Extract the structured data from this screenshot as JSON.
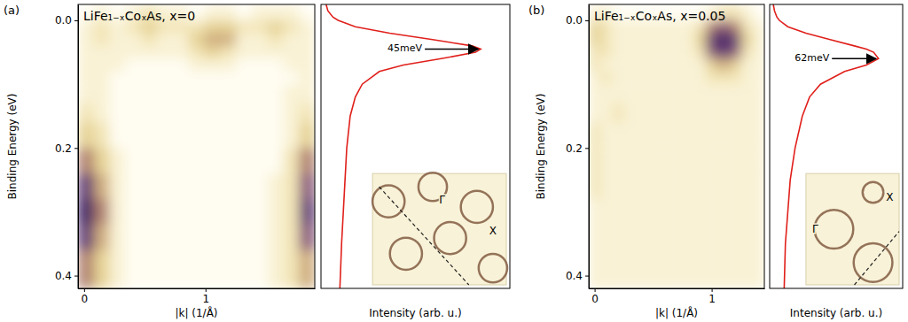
{
  "chart_data": [
    {
      "type": "heatmap",
      "label": "(a)",
      "title": "LiFe₁₋ₓCoₓAs, x=0",
      "x_label": "|k| (1/Å)",
      "y_label": "Binding Energy (eV)",
      "xlim": [
        -0.05,
        1.9
      ],
      "ylim": [
        0.42,
        -0.025
      ],
      "xticks": [
        0,
        1
      ],
      "yticks": [
        {
          "value": 0,
          "label": "0.0"
        },
        0.2,
        0.4
      ],
      "xbins": [
        -0.05,
        0.08,
        0.21,
        0.34,
        0.47,
        0.6,
        0.73,
        0.86,
        0.99,
        1.12,
        1.25,
        1.38,
        1.51,
        1.64,
        1.77,
        1.9
      ],
      "ybins": [
        -0.025,
        0,
        0.02,
        0.04,
        0.06,
        0.08,
        0.1,
        0.13,
        0.16,
        0.2,
        0.24,
        0.28,
        0.32,
        0.36,
        0.42
      ],
      "values": [
        [
          1,
          2,
          1,
          2,
          3,
          2,
          2,
          1,
          2,
          2,
          1,
          2,
          2,
          2,
          1
        ],
        [
          2,
          3,
          2,
          3,
          4,
          3,
          3,
          3,
          4,
          4,
          3,
          3,
          4,
          3,
          2
        ],
        [
          2,
          3,
          2,
          2,
          3,
          2,
          2,
          4,
          5,
          5,
          2,
          2,
          3,
          2,
          2
        ],
        [
          2,
          2,
          2,
          2,
          2,
          2,
          2,
          3,
          4,
          3,
          2,
          2,
          2,
          2,
          2
        ],
        [
          2,
          2,
          2,
          1,
          1,
          1,
          1,
          2,
          2,
          2,
          1,
          1,
          1,
          2,
          2
        ],
        [
          2,
          2,
          1,
          1,
          1,
          1,
          1,
          1,
          1,
          1,
          1,
          1,
          1,
          1,
          2
        ],
        [
          2,
          2,
          1,
          1,
          1,
          1,
          1,
          1,
          1,
          1,
          1,
          1,
          1,
          2,
          2
        ],
        [
          3,
          2,
          1,
          1,
          1,
          1,
          1,
          1,
          1,
          1,
          1,
          1,
          1,
          2,
          3
        ],
        [
          4,
          3,
          1,
          1,
          1,
          1,
          1,
          1,
          1,
          1,
          1,
          1,
          1,
          2,
          4
        ],
        [
          6,
          4,
          2,
          1,
          1,
          1,
          1,
          1,
          1,
          1,
          1,
          1,
          1,
          3,
          6
        ],
        [
          8,
          5,
          2,
          1,
          1,
          1,
          1,
          1,
          1,
          1,
          1,
          1,
          2,
          3,
          7
        ],
        [
          9,
          6,
          2,
          1,
          1,
          1,
          1,
          1,
          1,
          1,
          1,
          1,
          2,
          3,
          8
        ],
        [
          8,
          5,
          2,
          1,
          1,
          1,
          1,
          1,
          1,
          1,
          1,
          1,
          2,
          3,
          7
        ],
        [
          6,
          4,
          2,
          1,
          1,
          1,
          1,
          1,
          1,
          1,
          1,
          1,
          2,
          3,
          5
        ]
      ]
    },
    {
      "type": "line",
      "x_label": "Intensity (arb. u.)",
      "tick_labels": false,
      "color": "#e0201b",
      "xlim": [
        0,
        1.1
      ],
      "ylim": [
        0.42,
        -0.025
      ],
      "y": [
        -0.025,
        -0.015,
        -0.005,
        0,
        0.01,
        0.02,
        0.03,
        0.04,
        0.045,
        0.05,
        0.06,
        0.07,
        0.08,
        0.1,
        0.12,
        0.15,
        0.2,
        0.25,
        0.3,
        0.35,
        0.42
      ],
      "x": [
        0.03,
        0.04,
        0.07,
        0.1,
        0.2,
        0.4,
        0.65,
        0.88,
        0.93,
        0.9,
        0.7,
        0.48,
        0.34,
        0.24,
        0.2,
        0.17,
        0.15,
        0.14,
        0.13,
        0.12,
        0.11
      ],
      "annotation": "45meV",
      "inset_labels": [
        "Γ",
        "X"
      ]
    },
    {
      "type": "heatmap",
      "label": "(b)",
      "title": "LiFe₁₋ₓCoₓAs, x=0.05",
      "x_label": "|k| (1/Å)",
      "y_label": "Binding Energy (eV)",
      "xlim": [
        -0.05,
        1.45
      ],
      "ylim": [
        0.42,
        -0.025
      ],
      "xticks": [
        0,
        1
      ],
      "yticks": [
        {
          "value": 0,
          "label": "0.0"
        },
        0.2,
        0.4
      ],
      "xbins": [
        -0.05,
        0.05,
        0.15,
        0.25,
        0.35,
        0.45,
        0.55,
        0.65,
        0.75,
        0.85,
        0.95,
        1.05,
        1.15,
        1.25,
        1.35,
        1.45
      ],
      "ybins": [
        -0.025,
        0,
        0.02,
        0.04,
        0.06,
        0.08,
        0.1,
        0.13,
        0.16,
        0.2,
        0.24,
        0.28,
        0.32,
        0.36,
        0.42
      ],
      "values": [
        [
          2,
          2,
          1,
          1,
          1,
          1,
          1,
          1,
          1,
          1,
          2,
          3,
          3,
          2,
          1
        ],
        [
          4,
          3,
          2,
          2,
          2,
          2,
          2,
          2,
          2,
          3,
          6,
          7,
          6,
          3,
          2
        ],
        [
          4,
          3,
          2,
          2,
          2,
          2,
          2,
          2,
          2,
          4,
          8,
          9,
          8,
          4,
          2
        ],
        [
          3,
          3,
          2,
          2,
          2,
          2,
          2,
          2,
          2,
          3,
          7,
          8,
          7,
          3,
          2
        ],
        [
          3,
          2,
          2,
          2,
          2,
          2,
          2,
          2,
          2,
          2,
          4,
          5,
          4,
          2,
          2
        ],
        [
          2,
          3,
          2,
          2,
          2,
          2,
          2,
          2,
          2,
          2,
          3,
          3,
          3,
          2,
          2
        ],
        [
          2,
          2,
          2,
          2,
          2,
          2,
          2,
          2,
          2,
          2,
          2,
          2,
          2,
          2,
          2
        ],
        [
          2,
          2,
          3,
          2,
          2,
          2,
          2,
          2,
          2,
          2,
          2,
          2,
          2,
          2,
          2
        ],
        [
          3,
          2,
          2,
          2,
          2,
          2,
          2,
          2,
          2,
          2,
          2,
          2,
          2,
          2,
          2
        ],
        [
          3,
          2,
          2,
          2,
          2,
          2,
          2,
          2,
          2,
          2,
          2,
          2,
          2,
          2,
          2
        ],
        [
          3,
          2,
          2,
          2,
          2,
          2,
          2,
          2,
          2,
          2,
          2,
          2,
          2,
          2,
          2
        ],
        [
          2,
          2,
          2,
          2,
          2,
          2,
          2,
          2,
          2,
          2,
          2,
          2,
          2,
          2,
          2
        ],
        [
          2,
          2,
          2,
          2,
          2,
          2,
          2,
          2,
          2,
          2,
          2,
          2,
          2,
          2,
          2
        ],
        [
          2,
          2,
          2,
          2,
          2,
          2,
          2,
          2,
          2,
          2,
          2,
          2,
          2,
          2,
          2
        ]
      ]
    },
    {
      "type": "line",
      "x_label": "Intensity (arb. u.)",
      "tick_labels": false,
      "color": "#e0201b",
      "xlim": [
        0,
        1.1
      ],
      "ylim": [
        0.42,
        -0.025
      ],
      "y": [
        -0.025,
        -0.015,
        -0.005,
        0,
        0.01,
        0.02,
        0.03,
        0.04,
        0.045,
        0.05,
        0.06,
        0.07,
        0.08,
        0.1,
        0.12,
        0.15,
        0.2,
        0.25,
        0.3,
        0.35,
        0.42
      ],
      "x": [
        0.03,
        0.04,
        0.06,
        0.08,
        0.15,
        0.3,
        0.5,
        0.7,
        0.8,
        0.86,
        0.9,
        0.8,
        0.62,
        0.42,
        0.33,
        0.27,
        0.21,
        0.17,
        0.15,
        0.13,
        0.12
      ],
      "annotation": "62meV",
      "inset_labels": [
        "Γ",
        "X"
      ]
    }
  ]
}
